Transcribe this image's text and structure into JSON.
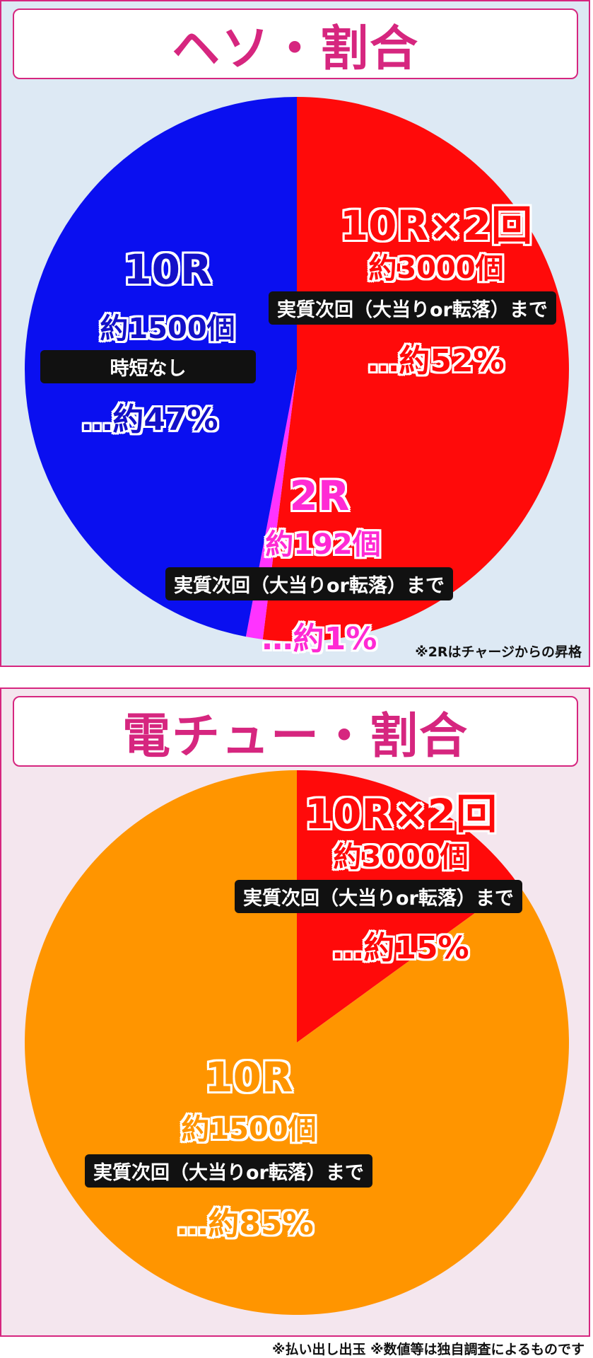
{
  "panels": [
    {
      "title": "ヘソ・割合",
      "labels": {
        "big_10r": {
          "name": "10R",
          "count": "約1500個",
          "tag": "時短なし",
          "pct": "…約47%"
        },
        "big_10rx2": {
          "name": "10R×2回",
          "count": "約3000個",
          "tag": "実質次回（大当りor転落）まで",
          "pct": "…約52%"
        },
        "small_2r": {
          "name": "2R",
          "count": "約192個",
          "tag": "実質次回（大当りor転落）まで",
          "pct": "…約1%"
        }
      },
      "footnote": "※2Rはチャージからの昇格"
    },
    {
      "title": "電チュー・割合",
      "labels": {
        "big_10rx2": {
          "name": "10R×2回",
          "count": "約3000個",
          "tag": "実質次回（大当りor転落）まで",
          "pct": "…約15%"
        },
        "big_10r": {
          "name": "10R",
          "count": "約1500個",
          "tag": "実質次回（大当りor転落）まで",
          "pct": "…約85%"
        }
      }
    }
  ],
  "footer": "※払い出し出玉 ※数値等は独自調査によるものです",
  "colors": {
    "accent": "#d6267f",
    "blue": "#0a0ff0",
    "red": "#ff0a0a",
    "magenta": "#ff33ff",
    "orange": "#ff9500",
    "label_blue_fill": "#1410c8",
    "label_magenta_fill": "#ff2ad4"
  },
  "chart_data": [
    {
      "type": "pie",
      "title": "ヘソ・割合",
      "categories": [
        "10R×2回",
        "2R",
        "10R"
      ],
      "values": [
        52,
        1,
        47
      ],
      "colors": [
        "#ff0a0a",
        "#ff33ff",
        "#0a0ff0"
      ]
    },
    {
      "type": "pie",
      "title": "電チュー・割合",
      "categories": [
        "10R×2回",
        "10R"
      ],
      "values": [
        15,
        85
      ],
      "colors": [
        "#ff0a0a",
        "#ff9500"
      ]
    }
  ]
}
